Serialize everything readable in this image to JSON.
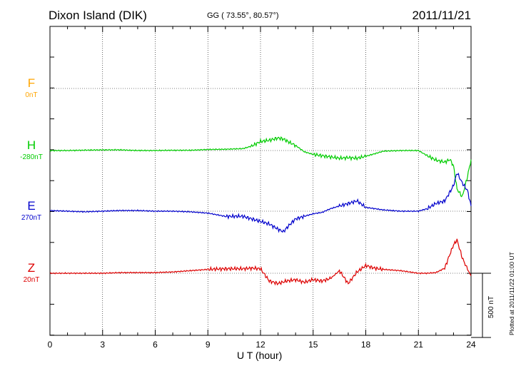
{
  "header": {
    "station": "Dixon Island (DIK)",
    "coords": "GG ( 73.55°,  80.57°)",
    "date": "2011/11/21"
  },
  "footer": {
    "xlabel": "U T (hour)",
    "plotted": "Plotted at 2011/11/22 01:00 UT",
    "scale_label": "500 nT"
  },
  "components": [
    {
      "name": "F",
      "baseline": "0nT",
      "color": "#FFA500"
    },
    {
      "name": "H",
      "baseline": "-280nT",
      "color": "#00CC00"
    },
    {
      "name": "E",
      "baseline": "270nT",
      "color": "#0000CC"
    },
    {
      "name": "Z",
      "baseline": "20nT",
      "color": "#DD0000"
    }
  ],
  "chart_data": {
    "type": "line",
    "title": "Dixon Island (DIK)",
    "xlabel": "U T (hour)",
    "xlim": [
      0,
      24
    ],
    "xticks": [
      0,
      3,
      6,
      9,
      12,
      15,
      18,
      21,
      24
    ],
    "grid": true,
    "scale_bar_nT": 500,
    "units": "nT",
    "series": [
      {
        "name": "F",
        "baseline": "0nT",
        "color": "#FFA500",
        "x": [],
        "values": []
      },
      {
        "name": "H",
        "baseline": "-280nT",
        "color": "#00CC00",
        "x": [
          0,
          1,
          2,
          3,
          4,
          5,
          6,
          7,
          8,
          9,
          10,
          11,
          11.5,
          12,
          12.5,
          13,
          13.3,
          13.7,
          14,
          14.5,
          15,
          15.5,
          16,
          16.5,
          17,
          17.5,
          18,
          19,
          20,
          21,
          21.5,
          22,
          22.5,
          22.8,
          23,
          23.2,
          23.5,
          23.8,
          24
        ],
        "values": [
          0,
          0,
          3,
          5,
          5,
          0,
          0,
          2,
          2,
          8,
          10,
          15,
          35,
          70,
          80,
          98,
          90,
          60,
          40,
          -10,
          -30,
          -40,
          -50,
          -60,
          -55,
          -60,
          -45,
          -5,
          0,
          0,
          -40,
          -75,
          -90,
          -70,
          -120,
          -300,
          -360,
          -200,
          -70
        ]
      },
      {
        "name": "E",
        "baseline": "270nT",
        "color": "#0000CC",
        "x": [
          0,
          1,
          2,
          3,
          4,
          5,
          6,
          7,
          8,
          9,
          10,
          11,
          11.5,
          12,
          12.5,
          13,
          13.3,
          13.7,
          14,
          14.5,
          15,
          15.5,
          16,
          16.5,
          17,
          17.5,
          18,
          19,
          20,
          21,
          21.5,
          22,
          22.5,
          22.8,
          23,
          23.2,
          23.5,
          23.8,
          24
        ],
        "values": [
          5,
          0,
          -5,
          0,
          5,
          5,
          0,
          0,
          -5,
          -15,
          -40,
          -40,
          -60,
          -80,
          -100,
          -140,
          -160,
          -100,
          -60,
          -40,
          -20,
          -10,
          20,
          40,
          60,
          80,
          30,
          10,
          0,
          0,
          20,
          60,
          80,
          150,
          200,
          300,
          220,
          160,
          40
        ]
      },
      {
        "name": "Z",
        "baseline": "20nT",
        "color": "#DD0000",
        "x": [
          0,
          1,
          2,
          3,
          4,
          5,
          6,
          7,
          8,
          9,
          10,
          11,
          11.5,
          12,
          12.5,
          13,
          13.5,
          14,
          14.5,
          15,
          15.5,
          16,
          16.5,
          17,
          17.5,
          18,
          18.5,
          19,
          20,
          21,
          21.5,
          22,
          22.5,
          22.8,
          23,
          23.2,
          23.5,
          23.8,
          24
        ],
        "values": [
          0,
          0,
          0,
          0,
          5,
          5,
          5,
          10,
          20,
          30,
          35,
          35,
          40,
          35,
          -60,
          -80,
          -60,
          -50,
          -70,
          -50,
          -60,
          -40,
          20,
          -80,
          10,
          60,
          40,
          30,
          20,
          0,
          0,
          5,
          40,
          150,
          220,
          260,
          120,
          30,
          -20
        ]
      }
    ]
  }
}
